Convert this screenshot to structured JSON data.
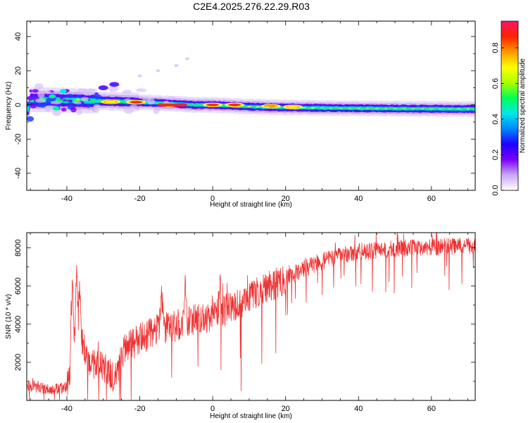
{
  "title": "C2E4.2025.276.22.29.R03",
  "chart_data": [
    {
      "type": "heatmap",
      "name": "spectrogram",
      "xlabel": "Height of straight line (km)",
      "ylabel": "Frequency (Hz)",
      "xlim": [
        -51,
        72
      ],
      "ylim": [
        -50,
        49
      ],
      "xticks": [
        -40,
        -20,
        0,
        20,
        40,
        60
      ],
      "yticks": [
        -40,
        -20,
        0,
        20,
        40
      ],
      "colorbar": {
        "label": "Normalized spectral amplitude",
        "range": [
          0,
          0.95
        ],
        "ticks": [
          "0.0",
          "0.2",
          "0.4",
          "0.6",
          "0.8"
        ],
        "colormap": [
          "#ffffff",
          "#c9a7f5",
          "#7b00ff",
          "#1e00ff",
          "#0088ff",
          "#00e8e8",
          "#00ff55",
          "#aaff00",
          "#ffff00",
          "#ff9900",
          "#ff2200",
          "#ff1466"
        ]
      },
      "band": [
        {
          "x": -50,
          "f": 3.0
        },
        {
          "x": -45,
          "f": 3.0
        },
        {
          "x": -40,
          "f": 2.6
        },
        {
          "x": -30,
          "f": 2.2
        },
        {
          "x": -20,
          "f": 1.6
        },
        {
          "x": -10,
          "f": 0.6
        },
        {
          "x": -5,
          "f": 0.0
        },
        {
          "x": 0,
          "f": 0.0
        },
        {
          "x": 10,
          "f": -1.0
        },
        {
          "x": 20,
          "f": -1.5
        },
        {
          "x": 40,
          "f": -2.0
        },
        {
          "x": 60,
          "f": -2.3
        },
        {
          "x": 72,
          "f": -2.4
        }
      ],
      "hotspots": [
        {
          "x": -44,
          "f": 5,
          "amp": 0.5
        },
        {
          "x": -43,
          "f": -2,
          "amp": 0.5
        },
        {
          "x": -41,
          "f": 8,
          "amp": 0.45
        },
        {
          "x": -37,
          "f": 3,
          "amp": 0.6
        },
        {
          "x": -28,
          "f": 1.8,
          "amp": 0.7
        },
        {
          "x": -21,
          "f": 1.6,
          "amp": 0.9
        },
        {
          "x": -12,
          "f": 0.0,
          "amp": 0.95
        },
        {
          "x": 0,
          "f": 0.0,
          "amp": 0.85
        },
        {
          "x": 6,
          "f": 0.0,
          "amp": 0.9
        },
        {
          "x": 16,
          "f": -0.8,
          "amp": 0.75
        },
        {
          "x": 22,
          "f": -1.2,
          "amp": 0.7
        }
      ],
      "harmonic_trail": [
        {
          "x": -30,
          "f": 10
        },
        {
          "x": -27,
          "f": 12
        },
        {
          "x": -20,
          "f": 17
        },
        {
          "x": -15,
          "f": 20
        },
        {
          "x": -10,
          "f": 23
        },
        {
          "x": -7,
          "f": 27
        }
      ]
    },
    {
      "type": "line",
      "name": "snr",
      "xlabel": "Height of straight line (km)",
      "ylabel": "SNR (10 * v/v)",
      "xlim": [
        -51,
        72
      ],
      "ylim": [
        0,
        8800
      ],
      "xticks": [
        -40,
        -20,
        0,
        20,
        40,
        60
      ],
      "yticks": [
        2000,
        4000,
        6000,
        8000
      ],
      "color": "#ee3333",
      "envelope": [
        {
          "x": -51,
          "y": 800
        },
        {
          "x": -48,
          "y": 700
        },
        {
          "x": -44,
          "y": 550
        },
        {
          "x": -40,
          "y": 700
        },
        {
          "x": -38,
          "y": 3000
        },
        {
          "x": -36,
          "y": 3400
        },
        {
          "x": -34,
          "y": 2000
        },
        {
          "x": -30,
          "y": 1700
        },
        {
          "x": -27,
          "y": 1200
        },
        {
          "x": -24,
          "y": 2700
        },
        {
          "x": -20,
          "y": 3200
        },
        {
          "x": -15,
          "y": 3700
        },
        {
          "x": -10,
          "y": 3900
        },
        {
          "x": -5,
          "y": 4300
        },
        {
          "x": 0,
          "y": 4400
        },
        {
          "x": 5,
          "y": 4900
        },
        {
          "x": 10,
          "y": 5400
        },
        {
          "x": 15,
          "y": 5900
        },
        {
          "x": 20,
          "y": 6400
        },
        {
          "x": 25,
          "y": 6900
        },
        {
          "x": 30,
          "y": 7300
        },
        {
          "x": 35,
          "y": 7600
        },
        {
          "x": 40,
          "y": 7800
        },
        {
          "x": 50,
          "y": 7950
        },
        {
          "x": 60,
          "y": 8050
        },
        {
          "x": 72,
          "y": 8100
        }
      ],
      "peaks": [
        {
          "x": -38.5,
          "y": 6400
        },
        {
          "x": -37.3,
          "y": 6500
        },
        {
          "x": -36.5,
          "y": 6100
        },
        {
          "x": -14,
          "y": 5800
        },
        {
          "x": -7.5,
          "y": 6500
        },
        {
          "x": 2,
          "y": 6100
        }
      ]
    }
  ]
}
